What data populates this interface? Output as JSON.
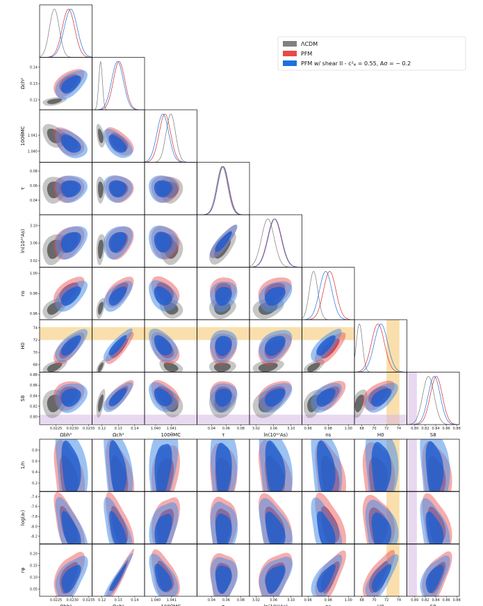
{
  "chart_data": {
    "type": "triangle-corner-plot",
    "description_labels": {
      "legend": [
        "ΛCDM",
        "PFM",
        "PFM w/ shear II - c_φ^2 = 0.55, A_σ = − 0.2"
      ]
    },
    "series": [
      {
        "name": "ΛCDM",
        "color": "#808080",
        "dark": "#505050"
      },
      {
        "name": "PFM",
        "color": "#e84a4a",
        "dark": "#d42a2a"
      },
      {
        "name": "PFM w/ shear II",
        "color": "#4a90e8",
        "dark": "#1e5fd0"
      }
    ],
    "legend": {
      "placement": "top-right",
      "entries": [
        "ΛCDM",
        "PFM",
        "PFM w/ shear II - c²ᵩ = 0.55, Aσ = − 0.2"
      ]
    },
    "params": [
      {
        "label": "Ωbh²",
        "range": [
          0.022,
          0.0236
        ],
        "ticks": [
          "0.0225",
          "0.0230",
          "0.0235"
        ],
        "tickvals": [
          0.0225,
          0.023,
          0.0235
        ],
        "means": [
          0.02245,
          0.02288,
          0.02295
        ],
        "sigmas": [
          0.00015,
          0.00019,
          0.0002
        ]
      },
      {
        "label": "Ωch²",
        "range": [
          0.114,
          0.146
        ],
        "ticks": [
          "0.12",
          "0.13",
          "0.14"
        ],
        "tickvals": [
          0.12,
          0.13,
          0.14
        ],
        "means": [
          0.1192,
          0.1305,
          0.1295
        ],
        "sigmas": [
          0.0011,
          0.0035,
          0.0036
        ]
      },
      {
        "label": "100θMC",
        "range": [
          1.0393,
          1.0426
        ],
        "ticks": [
          "1.040",
          "1.041"
        ],
        "tickvals": [
          1.04,
          1.041
        ],
        "means": [
          1.04095,
          1.04058,
          1.04045
        ],
        "sigmas": [
          0.0003,
          0.00036,
          0.00037
        ]
      },
      {
        "label": "τ",
        "range": [
          0.02,
          0.092
        ],
        "ticks": [
          "0.04",
          "0.06",
          "0.08"
        ],
        "tickvals": [
          0.04,
          0.06,
          0.08
        ],
        "means": [
          0.0545,
          0.0555,
          0.056
        ],
        "sigmas": [
          0.0075,
          0.0075,
          0.0076
        ]
      },
      {
        "label": "ln(10¹⁰As)",
        "range": [
          3.005,
          3.125
        ],
        "ticks": [
          "3.02",
          "3.06",
          "3.10"
        ],
        "tickvals": [
          3.02,
          3.06,
          3.1
        ],
        "means": [
          3.047,
          3.062,
          3.063
        ],
        "sigmas": [
          0.0145,
          0.0155,
          0.0155
        ]
      },
      {
        "label": "ns",
        "range": [
          0.954,
          1.006
        ],
        "ticks": [
          "0.96",
          "0.98",
          "1.00"
        ],
        "tickvals": [
          0.96,
          0.98,
          1.0
        ],
        "means": [
          0.9655,
          0.9815,
          0.9775
        ],
        "sigmas": [
          0.0042,
          0.0062,
          0.0062
        ]
      },
      {
        "label": "H0",
        "range": [
          66.8,
          75.3
        ],
        "ticks": [
          "68",
          "70",
          "72",
          "74"
        ],
        "tickvals": [
          68,
          70,
          72,
          74
        ],
        "means": [
          67.6,
          70.6,
          71.1
        ],
        "sigmas": [
          0.5,
          1.05,
          1.08
        ]
      },
      {
        "label": "S8",
        "range": [
          0.785,
          0.885
        ],
        "ticks": [
          "0.80",
          "0.82",
          "0.84",
          "0.86",
          "0.88"
        ],
        "tickvals": [
          0.8,
          0.82,
          0.84,
          0.86,
          0.88
        ],
        "means": [
          0.826,
          0.841,
          0.837
        ],
        "sigmas": [
          0.011,
          0.0115,
          0.0115
        ]
      }
    ],
    "extra_rows": [
      {
        "label": "1/n",
        "range": [
          0.05,
          1.0
        ],
        "ticks": [
          "0.2",
          "0.4",
          "0.6",
          "0.8"
        ],
        "tickvals": [
          0.2,
          0.4,
          0.6,
          0.8
        ]
      },
      {
        "label": "log(aₜ)",
        "range": [
          -8.35,
          -7.3
        ],
        "ticks": [
          "-8.2",
          "-8.0",
          "-7.8",
          "-7.6",
          "-7.4"
        ],
        "tickvals": [
          -8.2,
          -8.0,
          -7.8,
          -7.6,
          -7.4
        ]
      },
      {
        "label": "rφ",
        "range": [
          0.02,
          0.24
        ],
        "ticks": [
          "0.05",
          "0.10",
          "0.15",
          "0.20"
        ],
        "tickvals": [
          0.05,
          0.1,
          0.15,
          0.2
        ]
      }
    ],
    "bands": [
      {
        "param": "H0",
        "label": "SH0ES H0",
        "range": [
          72.0,
          74.1
        ],
        "color": "#f5b74e"
      },
      {
        "param": "S8",
        "label": "weak lensing S8",
        "range": [
          0.787,
          0.804
        ],
        "color": "#c9a3d9"
      }
    ]
  }
}
